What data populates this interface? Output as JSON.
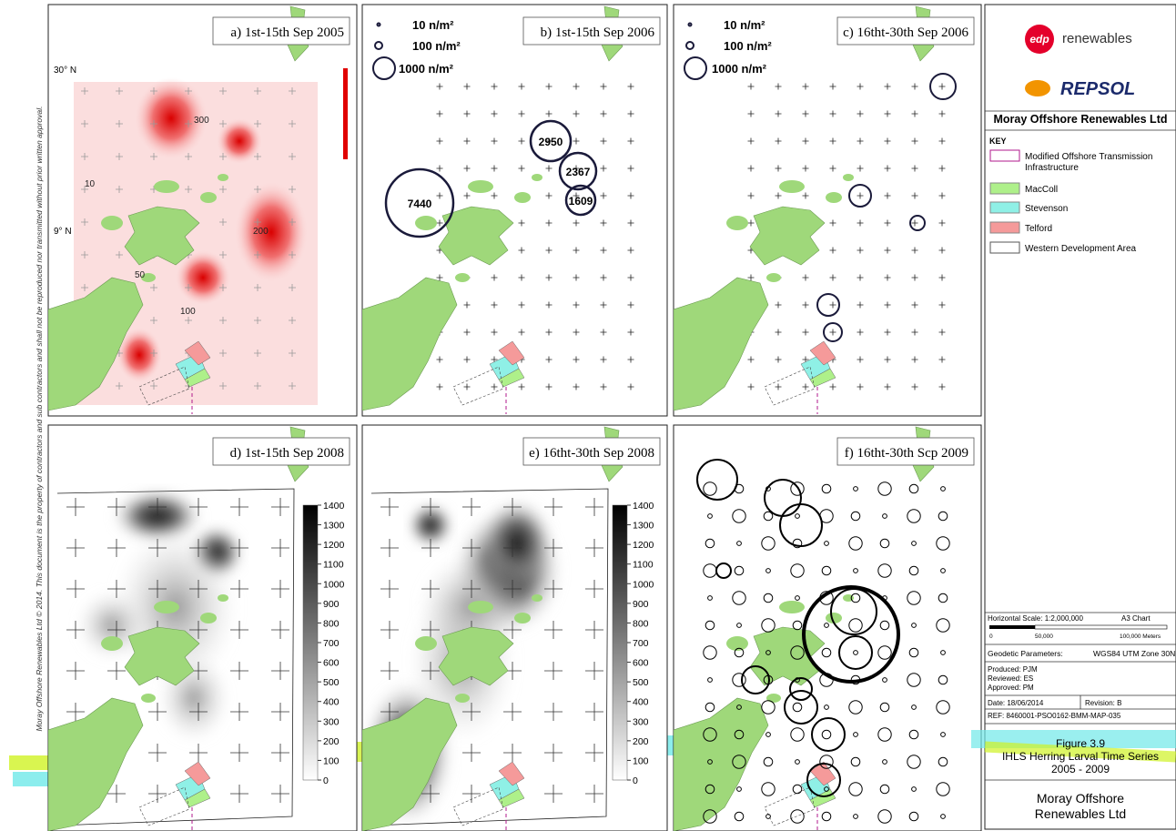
{
  "copyright": "Moray Offshore Renewables Ltd © 2014. This document is the property of contractors and sub contractors and shall not be reproduced nor transmitted without prior written approval.",
  "panels": [
    {
      "title": "a) 1st-15th Sep 2005",
      "lat_labels": [
        "30° N",
        "9° N"
      ],
      "contour_labels": [
        "300",
        "200",
        "100",
        "50",
        "10"
      ]
    },
    {
      "title": "b) 1st-15th Sep 2006",
      "legend": [
        "10 n/m²",
        "100 n/m²",
        "1000 n/m²"
      ],
      "annotations": [
        "7440",
        "2950",
        "2367",
        "1609"
      ]
    },
    {
      "title": "c) 16tht-30th Sep 2006",
      "legend": [
        "10 n/m²",
        "100 n/m²",
        "1000 n/m²"
      ]
    },
    {
      "title": "d) 1st-15th Sep 2008",
      "colorbar_ticks": [
        1400,
        1300,
        1200,
        1100,
        1000,
        900,
        800,
        700,
        600,
        500,
        400,
        300,
        200,
        100,
        0
      ]
    },
    {
      "title": "e) 16tht-30th Sep 2008",
      "colorbar_ticks": [
        1400,
        1300,
        1200,
        1100,
        1000,
        900,
        800,
        700,
        600,
        500,
        400,
        300,
        200,
        100,
        0
      ]
    },
    {
      "title": "f) 16tht-30th Scp 2009"
    }
  ],
  "sidebar": {
    "logo_1": "edp",
    "logo_1_text": "renewables",
    "logo_2": "REPSOL",
    "company": "Moray Offshore Renewables Ltd",
    "key_title": "KEY",
    "key": [
      {
        "label": "Modified Offshore Transmission Infrastructure",
        "color": "#ffffff",
        "stroke": "#b0198c"
      },
      {
        "label": "MacColl",
        "color": "#aef08a",
        "stroke": "#888888"
      },
      {
        "label": "Stevenson",
        "color": "#8ff0e6",
        "stroke": "#888888"
      },
      {
        "label": "Telford",
        "color": "#f59a9a",
        "stroke": "#888888"
      },
      {
        "label": "Western Development Area",
        "color": "#ffffff",
        "stroke": "#555555"
      }
    ],
    "scale": "Horizontal Scale:  1:2,000,000",
    "sheet": "A3 Chart",
    "scale_ticks": [
      "0",
      "50,000",
      "100,000 Meters"
    ],
    "geodetic_label": "Geodetic Parameters:",
    "geodetic": "WGS84 UTM Zone 30N",
    "produced": "Produced: PJM",
    "reviewed": "Reviewed: ES",
    "approved": "Approved: PM",
    "date": "Date: 18/06/2014",
    "revision": "Revision: B",
    "ref": "REF: 8460001-PSO0162-BMM-MAP-035",
    "figure": "Figure 3.9",
    "figure_title": "IHLS Herring Larval Time Series",
    "years": "2005 - 2009",
    "footer": "Moray Offshore Renewables Ltd"
  }
}
